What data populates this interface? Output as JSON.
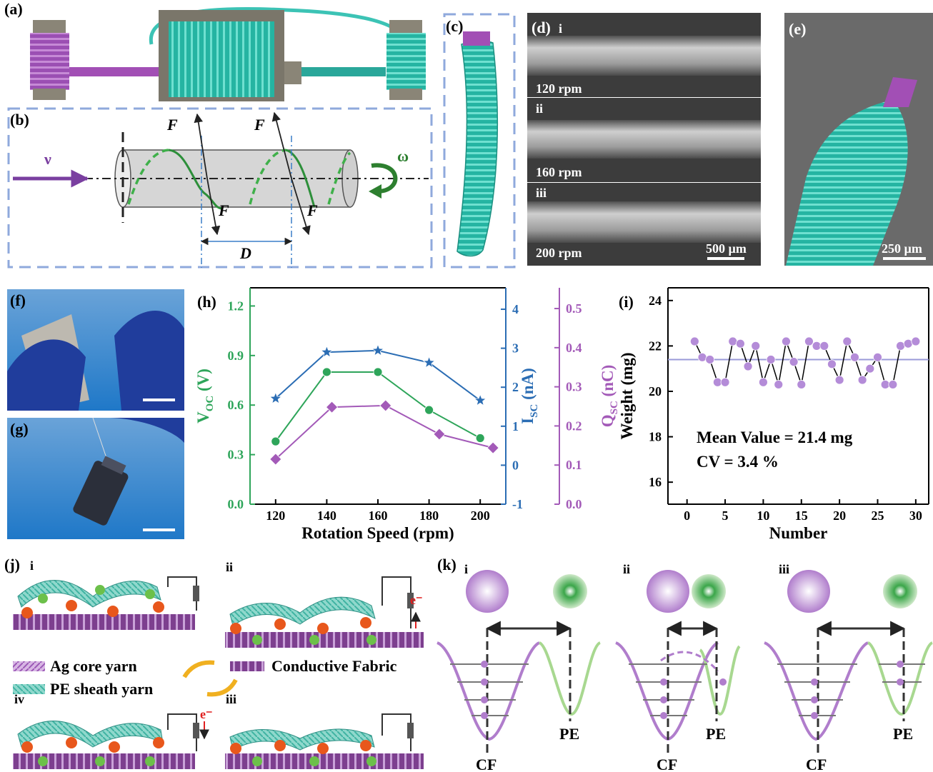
{
  "panel_labels": [
    "(a)",
    "(b)",
    "(c)",
    "(d)",
    "(e)",
    "(f)",
    "(g)",
    "(h)",
    "(i)",
    "(j)",
    "(k)"
  ],
  "b": {
    "velocity": "ν",
    "angular": "ω",
    "force": "F",
    "pitch": "D"
  },
  "d": {
    "sublabels": [
      "i",
      "ii",
      "iii"
    ],
    "speeds": [
      "120 rpm",
      "160 rpm",
      "200 rpm"
    ],
    "scale": "500 µm"
  },
  "e": {
    "scale": "250 µm"
  },
  "j": {
    "stages": [
      "i",
      "ii",
      "iii",
      "iv"
    ],
    "legend": [
      "Ag core yarn",
      "PE sheath yarn",
      "Conductive Fabric"
    ],
    "electron": "e⁻"
  },
  "k": {
    "stages": [
      "i",
      "ii",
      "iii"
    ],
    "materials": [
      "CF",
      "PE"
    ]
  },
  "chart_data": [
    {
      "type": "line",
      "xlabel": "Rotation Speed (rpm)",
      "ylabel": [
        "V",
        "OC",
        " (V)"
      ],
      "y2label": [
        "I",
        "SC",
        " (nA)"
      ],
      "y3label": [
        "Q",
        "SC",
        " (nC)"
      ],
      "xlim": [
        110,
        210
      ],
      "xticks": [
        120,
        140,
        160,
        180,
        200
      ],
      "ylim": [
        0,
        1.31
      ],
      "yticks": [
        {
          "value": 0,
          "label": "0.0"
        },
        0.3,
        0.6,
        0.9,
        1.2
      ],
      "y2lim": [
        -1,
        4.55
      ],
      "y2ticks": [
        -1,
        0,
        1,
        2,
        3,
        4
      ],
      "y3lim": [
        0,
        0.553
      ],
      "y3ticks": [
        {
          "value": 0,
          "label": "0.0"
        },
        0.1,
        0.2,
        0.3,
        0.4,
        0.5
      ],
      "axis_colors": [
        "#2ea55a",
        "#2b6db4",
        "#a35ab8"
      ],
      "series": [
        {
          "color": "#2ea55a",
          "marker": "circle",
          "x": [
            120,
            140,
            160,
            180,
            200
          ],
          "values": [
            0.38,
            0.8,
            0.8,
            0.57,
            0.4
          ]
        },
        {
          "color": "#2b6db4",
          "marker": "star",
          "axis": "y2",
          "x": [
            120,
            140,
            160,
            180,
            200
          ],
          "values": [
            1.71,
            2.9,
            2.94,
            2.63,
            1.66
          ]
        },
        {
          "color": "#a35ab8",
          "marker": "diamond",
          "axis": "y3",
          "x": [
            120,
            142,
            163,
            184,
            205
          ],
          "values": [
            0.115,
            0.248,
            0.252,
            0.179,
            0.144
          ]
        }
      ]
    },
    {
      "type": "line",
      "xlabel": "Number",
      "ylabel": "Weight (mg)",
      "xlim": [
        -2.5,
        31.7
      ],
      "xticks": [
        0,
        5,
        10,
        15,
        20,
        25,
        30
      ],
      "ylim": [
        15.03,
        24.56
      ],
      "yticks": [
        16,
        18,
        20,
        22,
        24
      ],
      "x": [
        1,
        2,
        3,
        4,
        5,
        6,
        7,
        8,
        9,
        10,
        11,
        12,
        13,
        14,
        15,
        16,
        17,
        18,
        19,
        20,
        21,
        22,
        23,
        24,
        25,
        26,
        27,
        28,
        29,
        30
      ],
      "series": [
        {
          "color": "#b48cd8",
          "marker": "circle",
          "line_color": "#000000",
          "values": [
            22.2,
            21.5,
            21.4,
            20.4,
            20.4,
            22.2,
            22.1,
            21.1,
            22.0,
            20.4,
            21.4,
            20.3,
            22.2,
            21.3,
            20.3,
            22.2,
            22.0,
            22.0,
            21.2,
            20.5,
            22.2,
            21.5,
            20.5,
            21.0,
            21.5,
            20.3,
            20.3,
            22.0,
            22.1,
            22.2
          ]
        }
      ],
      "mean_line": 21.4,
      "mean_color": "#9a9ad8",
      "annotations": [
        "Mean Value = 21.4 mg",
        "CV = 3.4 %"
      ]
    }
  ]
}
